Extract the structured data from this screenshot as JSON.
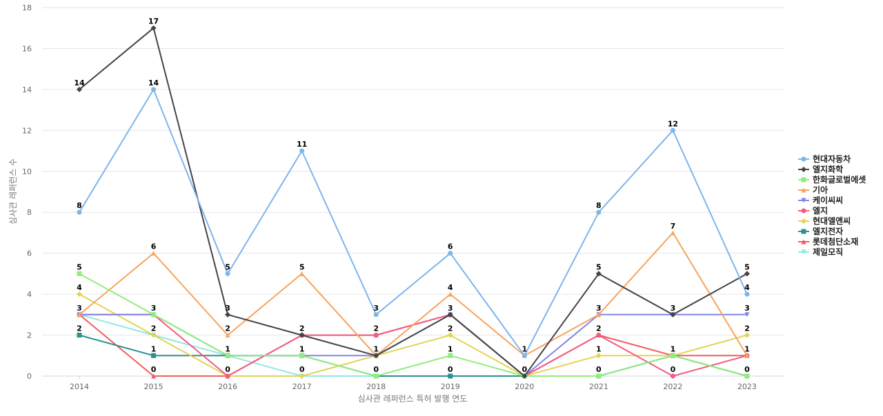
{
  "chart_data": {
    "type": "line",
    "xlabel": "심사관 레퍼런스 특허 발행 연도",
    "ylabel": "심사관 레퍼런스 수",
    "x": [
      "2014",
      "2015",
      "2016",
      "2017",
      "2018",
      "2019",
      "2020",
      "2021",
      "2022",
      "2023"
    ],
    "ylim": [
      0,
      18
    ],
    "yticks": [
      0,
      2,
      4,
      6,
      8,
      10,
      12,
      14,
      16,
      18
    ],
    "grid": true,
    "legend": "right",
    "series": [
      {
        "name": "현대자동차",
        "color": "#7cb5ec",
        "marker": "circle",
        "values": [
          8,
          14,
          5,
          11,
          3,
          6,
          1,
          8,
          12,
          4
        ]
      },
      {
        "name": "엘지화학",
        "color": "#434348",
        "marker": "diamond",
        "values": [
          14,
          17,
          3,
          2,
          1,
          3,
          0,
          5,
          3,
          5
        ]
      },
      {
        "name": "한화글로벌에셋",
        "color": "#90ed7d",
        "marker": "square",
        "values": [
          5,
          3,
          1,
          1,
          0,
          1,
          0,
          0,
          1,
          0
        ]
      },
      {
        "name": "기아",
        "color": "#f7a35c",
        "marker": "triangle",
        "values": [
          3,
          6,
          2,
          5,
          1,
          4,
          1,
          3,
          7,
          1
        ]
      },
      {
        "name": "케이씨씨",
        "color": "#8085e9",
        "marker": "triangle-down",
        "values": [
          3,
          3,
          1,
          1,
          1,
          3,
          0,
          3,
          3,
          3
        ]
      },
      {
        "name": "엘지",
        "color": "#f15c80",
        "marker": "circle",
        "values": [
          3,
          3,
          0,
          2,
          2,
          3,
          0,
          2,
          0,
          1
        ]
      },
      {
        "name": "현대엘앤씨",
        "color": "#e4d354",
        "marker": "diamond",
        "values": [
          4,
          2,
          0,
          0,
          1,
          2,
          0,
          1,
          1,
          2
        ]
      },
      {
        "name": "엘지전자",
        "color": "#2b908f",
        "marker": "square",
        "values": [
          2,
          1,
          1,
          1,
          0,
          0,
          0,
          0,
          1,
          0
        ]
      },
      {
        "name": "롯데첨단소재",
        "color": "#f45b5b",
        "marker": "triangle",
        "values": [
          3,
          0,
          0,
          2,
          2,
          3,
          0,
          2,
          1,
          1
        ]
      },
      {
        "name": "제일모직",
        "color": "#91e8e1",
        "marker": "triangle-down",
        "values": [
          3,
          2,
          1,
          0,
          0,
          0,
          0,
          0,
          1,
          0
        ]
      }
    ],
    "data_labels": [
      {
        "x": "2014",
        "value": 14
      },
      {
        "x": "2014",
        "value": 8
      },
      {
        "x": "2014",
        "value": 5
      },
      {
        "x": "2014",
        "value": 4
      },
      {
        "x": "2014",
        "value": 3
      },
      {
        "x": "2014",
        "value": 2
      },
      {
        "x": "2015",
        "value": 17
      },
      {
        "x": "2015",
        "value": 14
      },
      {
        "x": "2015",
        "value": 6
      },
      {
        "x": "2015",
        "value": 3
      },
      {
        "x": "2015",
        "value": 2
      },
      {
        "x": "2015",
        "value": 1
      },
      {
        "x": "2015",
        "value": 0
      },
      {
        "x": "2016",
        "value": 5
      },
      {
        "x": "2016",
        "value": 3
      },
      {
        "x": "2016",
        "value": 2
      },
      {
        "x": "2016",
        "value": 1
      },
      {
        "x": "2016",
        "value": 0
      },
      {
        "x": "2017",
        "value": 11
      },
      {
        "x": "2017",
        "value": 5
      },
      {
        "x": "2017",
        "value": 2
      },
      {
        "x": "2017",
        "value": 1
      },
      {
        "x": "2017",
        "value": 0
      },
      {
        "x": "2018",
        "value": 3
      },
      {
        "x": "2018",
        "value": 2
      },
      {
        "x": "2018",
        "value": 1
      },
      {
        "x": "2018",
        "value": 0
      },
      {
        "x": "2019",
        "value": 6
      },
      {
        "x": "2019",
        "value": 4
      },
      {
        "x": "2019",
        "value": 3
      },
      {
        "x": "2019",
        "value": 2
      },
      {
        "x": "2019",
        "value": 1
      },
      {
        "x": "2019",
        "value": 0
      },
      {
        "x": "2020",
        "value": 1
      },
      {
        "x": "2020",
        "value": 0
      },
      {
        "x": "2021",
        "value": 8
      },
      {
        "x": "2021",
        "value": 5
      },
      {
        "x": "2021",
        "value": 3
      },
      {
        "x": "2021",
        "value": 2
      },
      {
        "x": "2021",
        "value": 1
      },
      {
        "x": "2021",
        "value": 0
      },
      {
        "x": "2022",
        "value": 12
      },
      {
        "x": "2022",
        "value": 7
      },
      {
        "x": "2022",
        "value": 3
      },
      {
        "x": "2022",
        "value": 1
      },
      {
        "x": "2022",
        "value": 0
      },
      {
        "x": "2023",
        "value": 5
      },
      {
        "x": "2023",
        "value": 4
      },
      {
        "x": "2023",
        "value": 3
      },
      {
        "x": "2023",
        "value": 2
      },
      {
        "x": "2023",
        "value": 1
      },
      {
        "x": "2023",
        "value": 0
      }
    ]
  }
}
